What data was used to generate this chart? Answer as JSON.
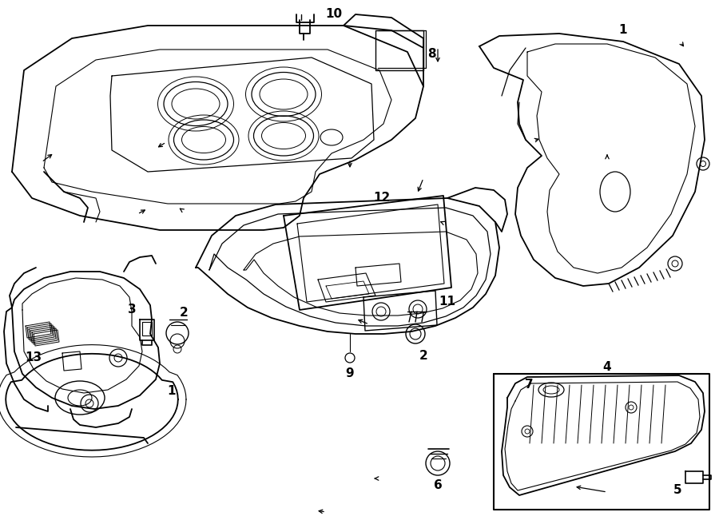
{
  "background_color": "#ffffff",
  "line_color": "#000000",
  "figure_width": 9.0,
  "figure_height": 6.61,
  "dpi": 100,
  "annotation_fontsize": 11,
  "label_fontsize": 11
}
